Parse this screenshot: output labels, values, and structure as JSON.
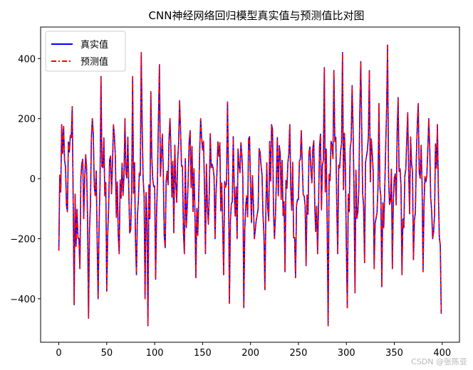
{
  "chart_data": {
    "type": "line",
    "title": "CNN神经网络回归模型真实值与预测值比对图",
    "xlabel": "",
    "ylabel": "",
    "xlim": [
      -19,
      418
    ],
    "ylim": [
      -545,
      505
    ],
    "xticks": [
      0,
      50,
      100,
      150,
      200,
      250,
      300,
      350,
      400
    ],
    "xtick_labels": [
      "0",
      "50",
      "100",
      "150",
      "200",
      "250",
      "300",
      "350",
      "400"
    ],
    "yticks": [
      -400,
      -200,
      0,
      200,
      400
    ],
    "ytick_labels": [
      "−400",
      "−200",
      "0",
      "200",
      "400"
    ],
    "legend_position": "upper-left",
    "grid": false,
    "n_points": 400,
    "series": [
      {
        "name": "真实值",
        "color": "#0000ff",
        "style": "solid",
        "anchors": [
          [
            0,
            -240
          ],
          [
            3,
            180
          ],
          [
            8,
            -90
          ],
          [
            14,
            240
          ],
          [
            16,
            -420
          ],
          [
            22,
            -300
          ],
          [
            28,
            80
          ],
          [
            31,
            -465
          ],
          [
            35,
            200
          ],
          [
            41,
            -400
          ],
          [
            44,
            340
          ],
          [
            50,
            -375
          ],
          [
            57,
            180
          ],
          [
            63,
            -250
          ],
          [
            69,
            200
          ],
          [
            75,
            -170
          ],
          [
            77,
            340
          ],
          [
            81,
            -320
          ],
          [
            86,
            420
          ],
          [
            90,
            -400
          ],
          [
            93,
            -490
          ],
          [
            96,
            290
          ],
          [
            101,
            -335
          ],
          [
            105,
            380
          ],
          [
            111,
            -230
          ],
          [
            116,
            200
          ],
          [
            120,
            -180
          ],
          [
            126,
            260
          ],
          [
            131,
            -250
          ],
          [
            137,
            160
          ],
          [
            143,
            -330
          ],
          [
            148,
            200
          ],
          [
            153,
            -250
          ],
          [
            158,
            150
          ],
          [
            163,
            -200
          ],
          [
            168,
            120
          ],
          [
            172,
            -320
          ],
          [
            176,
            255
          ],
          [
            178,
            -415
          ],
          [
            182,
            140
          ],
          [
            186,
            -200
          ],
          [
            190,
            120
          ],
          [
            193,
            -430
          ],
          [
            199,
            140
          ],
          [
            204,
            -200
          ],
          [
            209,
            100
          ],
          [
            215,
            -370
          ],
          [
            222,
            180
          ],
          [
            225,
            -200
          ],
          [
            230,
            110
          ],
          [
            236,
            -310
          ],
          [
            241,
            180
          ],
          [
            247,
            -330
          ],
          [
            253,
            160
          ],
          [
            258,
            -290
          ],
          [
            265,
            100
          ],
          [
            270,
            -250
          ],
          [
            277,
            370
          ],
          [
            281,
            -490
          ],
          [
            287,
            360
          ],
          [
            291,
            -250
          ],
          [
            296,
            420
          ],
          [
            301,
            -430
          ],
          [
            306,
            310
          ],
          [
            309,
            -380
          ],
          [
            315,
            390
          ],
          [
            319,
            -280
          ],
          [
            324,
            360
          ],
          [
            329,
            -300
          ],
          [
            334,
            250
          ],
          [
            337,
            -360
          ],
          [
            343,
            445
          ],
          [
            348,
            -300
          ],
          [
            354,
            270
          ],
          [
            358,
            -320
          ],
          [
            364,
            220
          ],
          [
            370,
            -270
          ],
          [
            375,
            250
          ],
          [
            380,
            -310
          ],
          [
            386,
            200
          ],
          [
            390,
            -200
          ],
          [
            395,
            180
          ],
          [
            399,
            -450
          ]
        ]
      },
      {
        "name": "预测值",
        "color": "#ff0000",
        "style": "dashdot",
        "anchors": [
          [
            0,
            -240
          ],
          [
            3,
            180
          ],
          [
            8,
            -90
          ],
          [
            14,
            240
          ],
          [
            16,
            -420
          ],
          [
            22,
            -300
          ],
          [
            28,
            80
          ],
          [
            31,
            -465
          ],
          [
            35,
            200
          ],
          [
            41,
            -400
          ],
          [
            44,
            340
          ],
          [
            50,
            -375
          ],
          [
            57,
            180
          ],
          [
            63,
            -250
          ],
          [
            69,
            200
          ],
          [
            75,
            -170
          ],
          [
            77,
            340
          ],
          [
            81,
            -320
          ],
          [
            86,
            420
          ],
          [
            90,
            -400
          ],
          [
            93,
            -490
          ],
          [
            96,
            290
          ],
          [
            101,
            -335
          ],
          [
            105,
            380
          ],
          [
            111,
            -230
          ],
          [
            116,
            200
          ],
          [
            120,
            -180
          ],
          [
            126,
            260
          ],
          [
            131,
            -250
          ],
          [
            137,
            160
          ],
          [
            143,
            -330
          ],
          [
            148,
            200
          ],
          [
            153,
            -250
          ],
          [
            158,
            150
          ],
          [
            163,
            -200
          ],
          [
            168,
            120
          ],
          [
            172,
            -320
          ],
          [
            176,
            255
          ],
          [
            178,
            -415
          ],
          [
            182,
            140
          ],
          [
            186,
            -200
          ],
          [
            190,
            120
          ],
          [
            193,
            -430
          ],
          [
            199,
            140
          ],
          [
            204,
            -200
          ],
          [
            209,
            100
          ],
          [
            215,
            -370
          ],
          [
            222,
            180
          ],
          [
            225,
            -200
          ],
          [
            230,
            110
          ],
          [
            236,
            -310
          ],
          [
            241,
            180
          ],
          [
            247,
            -330
          ],
          [
            253,
            160
          ],
          [
            258,
            -290
          ],
          [
            265,
            100
          ],
          [
            270,
            -250
          ],
          [
            277,
            370
          ],
          [
            281,
            -490
          ],
          [
            287,
            360
          ],
          [
            291,
            -250
          ],
          [
            296,
            420
          ],
          [
            301,
            -430
          ],
          [
            306,
            310
          ],
          [
            309,
            -380
          ],
          [
            315,
            390
          ],
          [
            319,
            -280
          ],
          [
            324,
            360
          ],
          [
            329,
            -300
          ],
          [
            334,
            250
          ],
          [
            337,
            -360
          ],
          [
            343,
            445
          ],
          [
            348,
            -300
          ],
          [
            354,
            270
          ],
          [
            358,
            -320
          ],
          [
            364,
            220
          ],
          [
            370,
            -270
          ],
          [
            375,
            250
          ],
          [
            380,
            -310
          ],
          [
            386,
            200
          ],
          [
            390,
            -200
          ],
          [
            395,
            180
          ],
          [
            399,
            -450
          ]
        ]
      }
    ]
  },
  "watermark": "CSDN @张陈亚"
}
